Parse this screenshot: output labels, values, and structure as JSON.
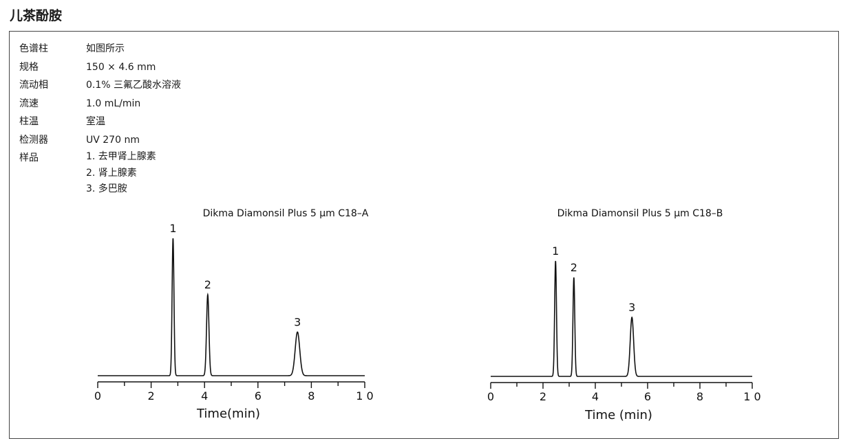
{
  "page": {
    "title": "儿茶酚胺"
  },
  "conditions": [
    {
      "key": "色谱柱",
      "values": [
        "如图所示"
      ]
    },
    {
      "key": "规格",
      "values": [
        "150 × 4.6 mm"
      ]
    },
    {
      "key": "流动相",
      "values": [
        "0.1% 三氟乙酸水溶液"
      ]
    },
    {
      "key": "流速",
      "values": [
        "1.0 mL/min"
      ]
    },
    {
      "key": "柱温",
      "values": [
        "室温"
      ]
    },
    {
      "key": "检测器",
      "values": [
        "UV 270 nm"
      ]
    },
    {
      "key": "样品",
      "values": [
        "1. 去甲肾上腺素",
        "2. 肾上腺素",
        "3. 多巴胺"
      ]
    }
  ],
  "chart_data": [
    {
      "type": "line",
      "title": "Dikma Diamonsil Plus 5 μm C18–A",
      "xlabel": "Time(min)",
      "ylabel": "",
      "xlim": [
        0,
        10
      ],
      "xticks": [
        "0",
        "2",
        "4",
        "6",
        "8",
        "1 0"
      ],
      "grid": false,
      "peaks": [
        {
          "label": "1",
          "time": 2.82,
          "height": 1.0,
          "width": 0.035
        },
        {
          "label": "2",
          "time": 4.12,
          "height": 0.59,
          "width": 0.045
        },
        {
          "label": "3",
          "time": 7.48,
          "height": 0.318,
          "width": 0.085
        }
      ]
    },
    {
      "type": "line",
      "title": "Dikma Diamonsil Plus 5 μm C18–B",
      "xlabel": "Time (min)",
      "ylabel": "",
      "xlim": [
        0,
        10
      ],
      "xticks": [
        "0",
        "2",
        "4",
        "6",
        "8",
        "1 0"
      ],
      "grid": false,
      "peaks": [
        {
          "label": "1",
          "time": 2.48,
          "height": 0.84,
          "width": 0.035
        },
        {
          "label": "2",
          "time": 3.18,
          "height": 0.72,
          "width": 0.035
        },
        {
          "label": "3",
          "time": 5.4,
          "height": 0.43,
          "width": 0.065
        }
      ]
    }
  ]
}
